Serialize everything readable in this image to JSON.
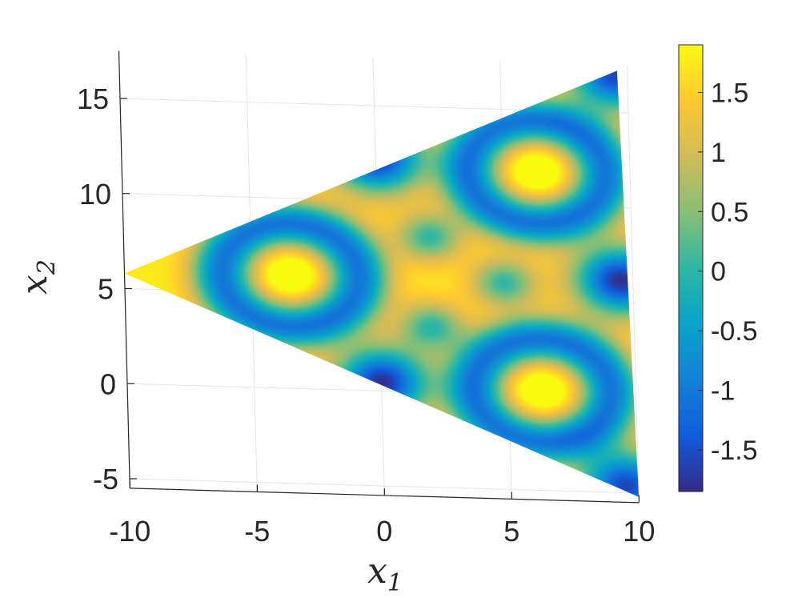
{
  "chart_data": {
    "type": "heatmap",
    "title": "",
    "xlabel": "x",
    "xlabel_sub": "1",
    "ylabel": "x",
    "ylabel_sub": "2",
    "xlim": [
      -10,
      10
    ],
    "ylim": [
      -5.5,
      17.5
    ],
    "x_ticks": [
      -10,
      -5,
      0,
      5,
      10
    ],
    "y_ticks": [
      -5,
      0,
      5,
      10,
      15
    ],
    "x_tick_labels": [
      "-10",
      "-5",
      "0",
      "5",
      "10"
    ],
    "y_tick_labels": [
      "-5",
      "0",
      "5",
      "10",
      "15"
    ],
    "grid": true,
    "view": "3-D surface seen nearly from above (perspective)",
    "domain_shape": "equilateral triangle",
    "domain_vertices": [
      [
        -10,
        5.8
      ],
      [
        9.6,
        17.2
      ],
      [
        10,
        -5.2
      ]
    ],
    "colormap": "parula",
    "colorbar": {
      "position": "right",
      "limits": [
        -1.85,
        1.9
      ],
      "ticks": [
        -1.5,
        -1,
        -0.5,
        0,
        0.5,
        1,
        1.5
      ],
      "tick_labels": [
        "-1.5",
        "-1",
        "-0.5",
        "0",
        "0.5",
        "1",
        "1.5"
      ]
    },
    "features": [
      {
        "kind": "minimum",
        "x": 0,
        "y": 12.3,
        "value": -1.8
      },
      {
        "kind": "minimum",
        "x": 0,
        "y": 0.5,
        "value": -1.8
      },
      {
        "kind": "minimum",
        "x": 9.5,
        "y": 6.2,
        "value": -1.8
      },
      {
        "kind": "minimum",
        "x": 9.5,
        "y": 17,
        "value": -1.6
      },
      {
        "kind": "minimum",
        "x": 9.5,
        "y": -4.6,
        "value": -1.6
      },
      {
        "kind": "local max",
        "x": -3.5,
        "y": 6,
        "value": 1.5
      },
      {
        "kind": "local max",
        "x": 6.3,
        "y": 11.8,
        "value": 1.5
      },
      {
        "kind": "local max",
        "x": 6.3,
        "y": 0.3,
        "value": 1.5
      }
    ]
  },
  "colors": {
    "parula": [
      "#352a87",
      "#0f5cdd",
      "#1481d6",
      "#06a4ca",
      "#2eb7a4",
      "#87bf77",
      "#d1bb59",
      "#fec832",
      "#f9fb0e"
    ],
    "axis": "#262626",
    "grid": "#e6e6e6"
  }
}
